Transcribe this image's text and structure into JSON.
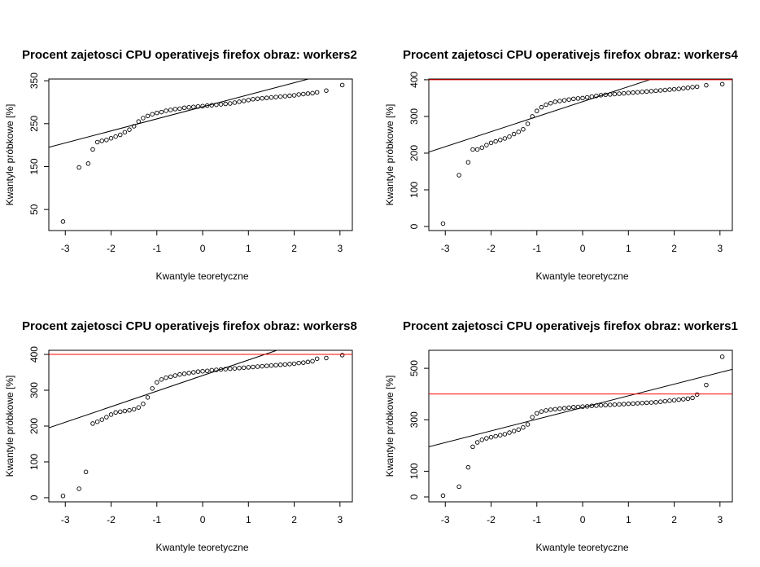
{
  "chart_data": [
    {
      "type": "scatter",
      "title": "Procent zajetosci CPU operativejs firefox obraz:  workers2",
      "x_label": "Kwantyle teoretyczne",
      "y_label": "Kwantyle próbkowe [%]",
      "x": [
        -3.05,
        -2.7,
        -2.5,
        -2.4,
        -2.3,
        -2.2,
        -2.1,
        -2.0,
        -1.9,
        -1.8,
        -1.7,
        -1.6,
        -1.5,
        -1.4,
        -1.3,
        -1.2,
        -1.1,
        -1.0,
        -0.9,
        -0.8,
        -0.7,
        -0.6,
        -0.5,
        -0.4,
        -0.3,
        -0.2,
        -0.1,
        0,
        0.1,
        0.2,
        0.3,
        0.4,
        0.5,
        0.6,
        0.7,
        0.8,
        0.9,
        1.0,
        1.1,
        1.2,
        1.3,
        1.4,
        1.5,
        1.6,
        1.7,
        1.8,
        1.9,
        2.0,
        2.1,
        2.2,
        2.3,
        2.4,
        2.5,
        2.7,
        3.05
      ],
      "values": [
        22,
        148,
        157,
        190,
        207,
        210,
        212,
        216,
        220,
        224,
        230,
        236,
        244,
        255,
        263,
        268,
        272,
        275,
        277,
        280,
        282,
        284,
        285,
        287,
        288,
        289,
        290,
        291,
        292,
        293,
        294,
        295,
        296,
        297,
        299,
        301,
        303,
        305,
        307,
        308,
        309,
        310,
        311,
        312,
        313,
        314,
        315,
        316,
        318,
        319,
        320,
        321,
        323,
        327,
        340
      ],
      "color": "#000000",
      "reference_line": {
        "x": [
          -3.36,
          2.31
        ],
        "y": [
          195,
          354
        ],
        "color": "#000000"
      },
      "xlim": [
        -3.36,
        3.27
      ],
      "ylim": [
        1,
        354
      ],
      "xticks": [
        -3,
        -2,
        -1,
        0,
        1,
        2,
        3
      ],
      "yticks": [
        50,
        150,
        250,
        350
      ]
    },
    {
      "type": "scatter",
      "title": "Procent zajetosci CPU operativejs firefox obraz:  workers4",
      "x_label": "Kwantyle teoretyczne",
      "y_label": "Kwantyle próbkowe [%]",
      "x": [
        -3.05,
        -2.7,
        -2.5,
        -2.4,
        -2.3,
        -2.2,
        -2.1,
        -2.0,
        -1.9,
        -1.8,
        -1.7,
        -1.6,
        -1.5,
        -1.4,
        -1.3,
        -1.2,
        -1.1,
        -1.0,
        -0.9,
        -0.8,
        -0.7,
        -0.6,
        -0.5,
        -0.4,
        -0.3,
        -0.2,
        -0.1,
        0,
        0.1,
        0.2,
        0.3,
        0.4,
        0.5,
        0.6,
        0.7,
        0.8,
        0.9,
        1.0,
        1.1,
        1.2,
        1.3,
        1.4,
        1.5,
        1.6,
        1.7,
        1.8,
        1.9,
        2.0,
        2.1,
        2.2,
        2.3,
        2.4,
        2.5,
        2.7,
        3.05
      ],
      "values": [
        8,
        140,
        175,
        210,
        210,
        215,
        222,
        228,
        232,
        236,
        240,
        245,
        252,
        258,
        265,
        280,
        300,
        315,
        325,
        332,
        336,
        340,
        342,
        344,
        346,
        348,
        349,
        350,
        352,
        354,
        356,
        358,
        359,
        360,
        361,
        362,
        363,
        364,
        365,
        366,
        367,
        368,
        369,
        370,
        371,
        372,
        373,
        374,
        375,
        377,
        378,
        380,
        381,
        385,
        388
      ],
      "color": "#000000",
      "reference_line": {
        "x": [
          -3.36,
          1.51
        ],
        "y": [
          203,
          402
        ],
        "color": "#000000"
      },
      "hline": 400,
      "hline_color": "#ff0000",
      "xlim": [
        -3.36,
        3.27
      ],
      "ylim": [
        -11,
        402
      ],
      "xticks": [
        -3,
        -2,
        -1,
        0,
        1,
        2,
        3
      ],
      "yticks": [
        0,
        100,
        200,
        300,
        400
      ]
    },
    {
      "type": "scatter",
      "title": "Procent zajetosci CPU operativejs firefox obraz:  workers8",
      "x_label": "Kwantyle teoretyczne",
      "y_label": "Kwantyle próbkowe [%]",
      "x": [
        -3.05,
        -2.7,
        -2.55,
        -2.4,
        -2.3,
        -2.2,
        -2.1,
        -2.0,
        -1.9,
        -1.8,
        -1.7,
        -1.6,
        -1.5,
        -1.4,
        -1.3,
        -1.2,
        -1.1,
        -1.0,
        -0.9,
        -0.8,
        -0.7,
        -0.6,
        -0.5,
        -0.4,
        -0.3,
        -0.2,
        -0.1,
        0,
        0.1,
        0.2,
        0.3,
        0.4,
        0.5,
        0.6,
        0.7,
        0.8,
        0.9,
        1.0,
        1.1,
        1.2,
        1.3,
        1.4,
        1.5,
        1.6,
        1.7,
        1.8,
        1.9,
        2.0,
        2.1,
        2.2,
        2.3,
        2.4,
        2.5,
        2.7,
        3.05
      ],
      "values": [
        5,
        25,
        72,
        207,
        212,
        218,
        225,
        232,
        238,
        240,
        242,
        244,
        247,
        252,
        262,
        280,
        305,
        322,
        330,
        335,
        338,
        341,
        344,
        346,
        348,
        350,
        352,
        353,
        354,
        356,
        357,
        358,
        359,
        360,
        361,
        362,
        363,
        364,
        365,
        366,
        367,
        368,
        369,
        370,
        371,
        372,
        373,
        374,
        376,
        377,
        379,
        381,
        388,
        390,
        398
      ],
      "color": "#000000",
      "reference_line": {
        "x": [
          -3.36,
          1.61
        ],
        "y": [
          195,
          411
        ],
        "color": "#000000"
      },
      "hline": 400,
      "hline_color": "#ff0000",
      "xlim": [
        -3.36,
        3.27
      ],
      "ylim": [
        -11.5,
        411.5
      ],
      "xticks": [
        -3,
        -2,
        -1,
        0,
        1,
        2,
        3
      ],
      "yticks": [
        0,
        100,
        200,
        300,
        400
      ]
    },
    {
      "type": "scatter",
      "title": "Procent zajetosci CPU operativejs firefox obraz:  workers1",
      "x_label": "Kwantyle teoretyczne",
      "y_label": "Kwantyle próbkowe [%]",
      "x": [
        -3.05,
        -2.7,
        -2.5,
        -2.4,
        -2.3,
        -2.2,
        -2.1,
        -2.0,
        -1.9,
        -1.8,
        -1.7,
        -1.6,
        -1.5,
        -1.4,
        -1.3,
        -1.2,
        -1.1,
        -1.0,
        -0.9,
        -0.8,
        -0.7,
        -0.6,
        -0.5,
        -0.4,
        -0.3,
        -0.2,
        -0.1,
        0,
        0.1,
        0.2,
        0.3,
        0.4,
        0.5,
        0.6,
        0.7,
        0.8,
        0.9,
        1.0,
        1.1,
        1.2,
        1.3,
        1.4,
        1.5,
        1.6,
        1.7,
        1.8,
        1.9,
        2.0,
        2.1,
        2.2,
        2.3,
        2.4,
        2.5,
        2.7,
        3.05
      ],
      "values": [
        5,
        40,
        115,
        195,
        212,
        222,
        228,
        232,
        236,
        240,
        244,
        250,
        256,
        262,
        270,
        282,
        310,
        325,
        332,
        336,
        339,
        341,
        343,
        345,
        347,
        349,
        350,
        351,
        352,
        354,
        355,
        356,
        357,
        358,
        359,
        360,
        361,
        362,
        363,
        364,
        365,
        366,
        367,
        368,
        370,
        372,
        374,
        376,
        378,
        380,
        382,
        385,
        398,
        435,
        545
      ],
      "color": "#000000",
      "reference_line": {
        "x": [
          -3.36,
          3.27
        ],
        "y": [
          195,
          496
        ],
        "color": "#000000"
      },
      "hline": 400,
      "hline_color": "#ff0000",
      "xlim": [
        -3.36,
        3.27
      ],
      "ylim": [
        -19,
        570
      ],
      "xticks": [
        -3,
        -2,
        -1,
        0,
        1,
        2,
        3
      ],
      "yticks": [
        0,
        100,
        300,
        500
      ]
    }
  ]
}
